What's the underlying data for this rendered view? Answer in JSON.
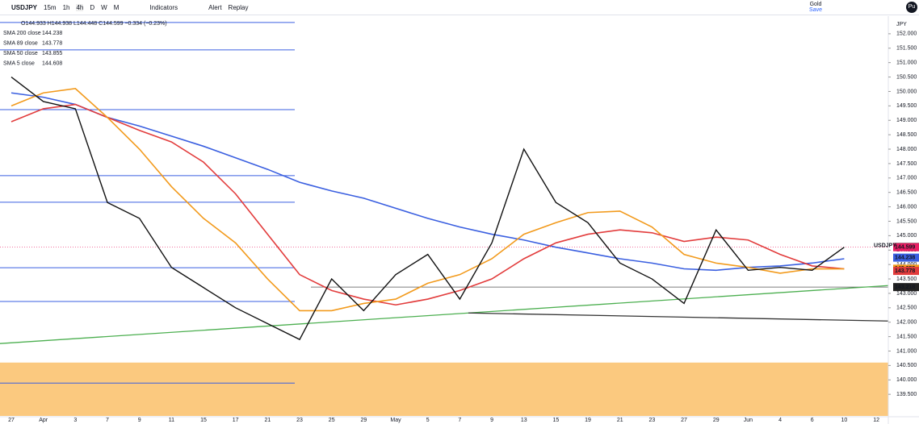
{
  "toolbar": {
    "symbol": "USDJPY",
    "intervals": [
      "15m",
      "1h",
      "4h",
      "D",
      "W",
      "M"
    ],
    "buttons": [
      "Indicators",
      "Alert",
      "Replay"
    ],
    "account": "Gold",
    "save": "Save",
    "avatar": "Pu"
  },
  "legend": {
    "ohlc": "O144.933 H144.938 L144.448 C144.599 −0.334 (−0.23%)"
  },
  "chart_data": {
    "type": "line",
    "symbol_label": "USDJPY",
    "currency": "JPY",
    "close": 144.599,
    "categories": [
      "27",
      "Apr",
      "3",
      "7",
      "9",
      "11",
      "15",
      "17",
      "21",
      "23",
      "25",
      "29",
      "May",
      "5",
      "7",
      "9",
      "13",
      "15",
      "19",
      "21",
      "23",
      "27",
      "29",
      "Jun",
      "4",
      "6",
      "10",
      "12"
    ],
    "series": [
      {
        "name": "SMA 200 close",
        "color": "#3a5fe0",
        "last": 144.238,
        "values": [
          149.95,
          149.8,
          149.55,
          149.1,
          148.8,
          148.45,
          148.1,
          147.7,
          147.3,
          146.85,
          146.55,
          146.3,
          145.95,
          145.6,
          145.3,
          145.05,
          144.85,
          144.6,
          144.4,
          144.2,
          144.05,
          143.85,
          143.8,
          143.9,
          143.95,
          144.05,
          144.2,
          null
        ]
      },
      {
        "name": "SMA 89 close",
        "color": "#e23c3c",
        "last": 143.778,
        "values": [
          148.95,
          149.4,
          149.55,
          149.1,
          148.65,
          148.25,
          147.55,
          146.45,
          145.05,
          143.65,
          143.1,
          142.8,
          142.6,
          142.8,
          143.1,
          143.5,
          144.2,
          144.75,
          145.05,
          145.2,
          145.1,
          144.8,
          144.95,
          144.85,
          144.35,
          143.95,
          143.85,
          null
        ]
      },
      {
        "name": "SMA 50 close",
        "color": "#f29a1c",
        "last": 143.855,
        "values": [
          149.5,
          149.95,
          150.1,
          149.1,
          148.0,
          146.7,
          145.6,
          144.75,
          143.5,
          142.4,
          142.4,
          142.65,
          142.8,
          143.35,
          143.65,
          144.2,
          145.05,
          145.45,
          145.8,
          145.85,
          145.3,
          144.35,
          144.05,
          143.9,
          143.7,
          143.85,
          143.85,
          null
        ]
      },
      {
        "name": "SMA 5 close",
        "color": "#111111",
        "last": 144.608,
        "values": [
          150.5,
          149.65,
          149.4,
          146.15,
          145.6,
          143.9,
          143.2,
          142.5,
          141.95,
          141.4,
          143.5,
          142.4,
          143.65,
          144.35,
          142.8,
          144.75,
          148.0,
          146.15,
          145.45,
          144.05,
          143.5,
          142.65,
          145.2,
          143.8,
          143.9,
          143.8,
          144.6,
          null
        ]
      }
    ],
    "levels": [
      152.39,
      151.44,
      149.37,
      147.08,
      146.16,
      143.89,
      142.72,
      139.89
    ],
    "level_color": "#3a5fe0",
    "support": 143.218,
    "zone": [
      138.75,
      140.6
    ],
    "zone_color": "#fbc97f",
    "trendlines": [
      {
        "color": "#4caf50",
        "from": 141.26,
        "to": 143.27
      },
      {
        "color": "#333333",
        "from": 142.32,
        "to": 142.04
      }
    ],
    "ylim": [
      138.75,
      152.5
    ],
    "yticks": [
      {
        "value": 152,
        "label": "152.000"
      },
      {
        "value": 151.5,
        "label": "151.500"
      },
      {
        "value": 151,
        "label": "151.000"
      },
      {
        "value": 150.5,
        "label": "150.500"
      },
      {
        "value": 150,
        "label": "150.000"
      },
      {
        "value": 149.5,
        "label": "149.500"
      },
      {
        "value": 149,
        "label": "149.000"
      },
      {
        "value": 148.5,
        "label": "148.500"
      },
      {
        "value": 148,
        "label": "148.000"
      },
      {
        "value": 147.5,
        "label": "147.500"
      },
      {
        "value": 147,
        "label": "147.000"
      },
      {
        "value": 146.5,
        "label": "146.500"
      },
      {
        "value": 146,
        "label": "146.000"
      },
      {
        "value": 145.5,
        "label": "145.500"
      },
      {
        "value": 145,
        "label": "145.000"
      },
      {
        "value": 144.5,
        "label": "144.500"
      },
      {
        "value": 144,
        "label": "144.000"
      },
      {
        "value": 143.5,
        "label": "143.500"
      },
      {
        "value": 143,
        "label": "143.000"
      },
      {
        "value": 142.5,
        "label": "142.500"
      },
      {
        "value": 142,
        "label": "142.000"
      },
      {
        "value": 141.5,
        "label": "141.500"
      },
      {
        "value": 141,
        "label": "141.000"
      },
      {
        "value": 140.5,
        "label": "140.500"
      },
      {
        "value": 140,
        "label": "140.000"
      },
      {
        "value": 139.5,
        "label": "139.500"
      }
    ]
  }
}
